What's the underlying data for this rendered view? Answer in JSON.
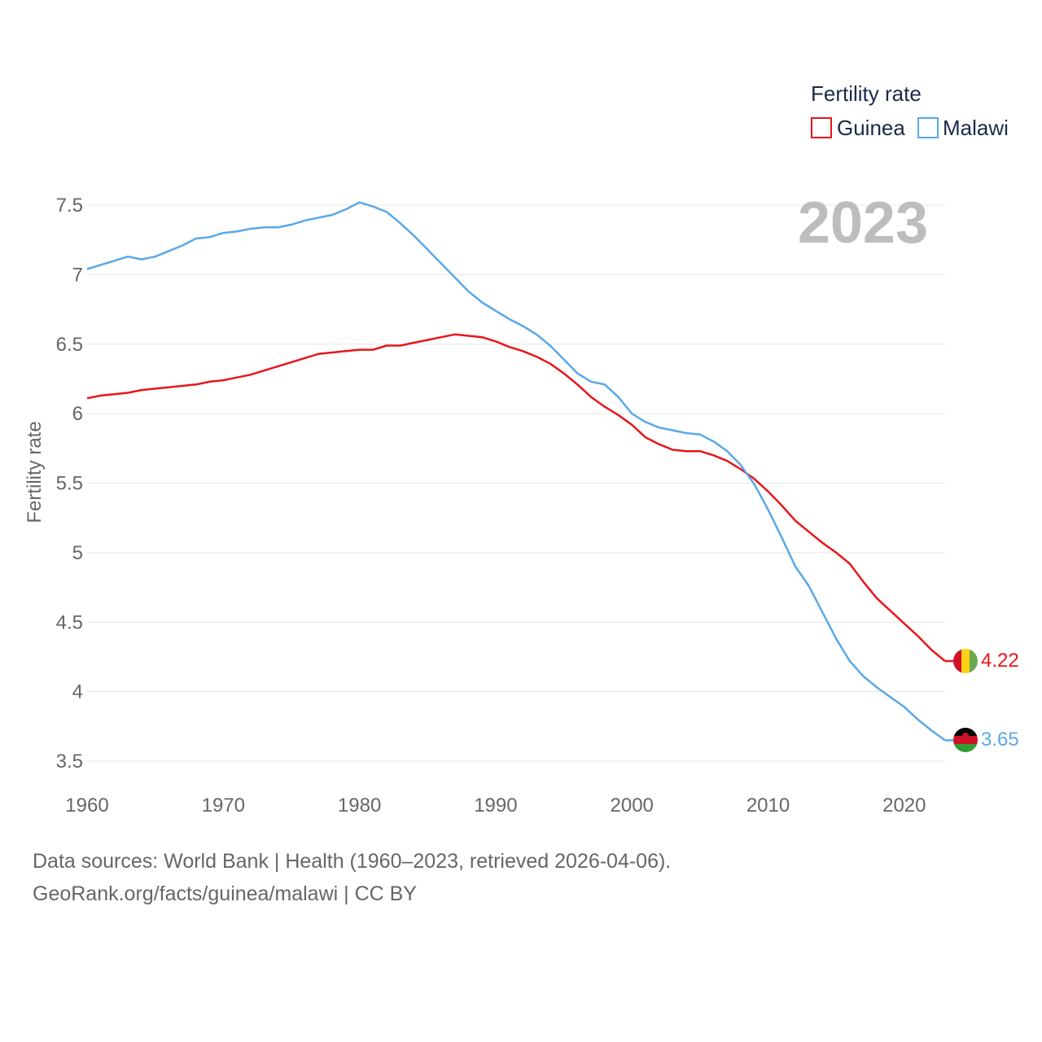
{
  "chart_data": {
    "type": "line",
    "title": "Fertility rate",
    "legend_title": "Fertility rate",
    "legend_position": "top-right",
    "ylabel": "Fertility rate",
    "xlabel": "",
    "year_label": "2023",
    "xlim": [
      1960,
      2023
    ],
    "ylim": [
      3.5,
      7.5
    ],
    "x_ticks": [
      "1960",
      "1970",
      "1980",
      "1990",
      "2000",
      "2010",
      "2020"
    ],
    "y_ticks": [
      "3.5",
      "4",
      "4.5",
      "5",
      "5.5",
      "6",
      "6.5",
      "7",
      "7.5"
    ],
    "grid": true,
    "x": [
      1960,
      1961,
      1962,
      1963,
      1964,
      1965,
      1966,
      1967,
      1968,
      1969,
      1970,
      1971,
      1972,
      1973,
      1974,
      1975,
      1976,
      1977,
      1978,
      1979,
      1980,
      1981,
      1982,
      1983,
      1984,
      1985,
      1986,
      1987,
      1988,
      1989,
      1990,
      1991,
      1992,
      1993,
      1994,
      1995,
      1996,
      1997,
      1998,
      1999,
      2000,
      2001,
      2002,
      2003,
      2004,
      2005,
      2006,
      2007,
      2008,
      2009,
      2010,
      2011,
      2012,
      2013,
      2014,
      2015,
      2016,
      2017,
      2018,
      2019,
      2020,
      2021,
      2022,
      2023
    ],
    "series": [
      {
        "name": "Guinea",
        "color": "#e8161b",
        "end_label": "4.22",
        "values": [
          6.11,
          6.13,
          6.14,
          6.15,
          6.17,
          6.18,
          6.19,
          6.2,
          6.21,
          6.23,
          6.24,
          6.26,
          6.28,
          6.31,
          6.34,
          6.37,
          6.4,
          6.43,
          6.44,
          6.45,
          6.46,
          6.46,
          6.49,
          6.49,
          6.51,
          6.53,
          6.55,
          6.57,
          6.56,
          6.55,
          6.52,
          6.48,
          6.45,
          6.41,
          6.36,
          6.29,
          6.21,
          6.12,
          6.05,
          5.99,
          5.92,
          5.83,
          5.78,
          5.74,
          5.73,
          5.73,
          5.7,
          5.66,
          5.6,
          5.53,
          5.44,
          5.34,
          5.23,
          5.15,
          5.07,
          5.0,
          4.92,
          4.79,
          4.67,
          4.58,
          4.49,
          4.4,
          4.3,
          4.22
        ]
      },
      {
        "name": "Malawi",
        "color": "#5aa8e8",
        "end_label": "3.65",
        "values": [
          7.04,
          7.07,
          7.1,
          7.13,
          7.11,
          7.13,
          7.17,
          7.21,
          7.26,
          7.27,
          7.3,
          7.31,
          7.33,
          7.34,
          7.34,
          7.36,
          7.39,
          7.41,
          7.43,
          7.47,
          7.52,
          7.49,
          7.45,
          7.37,
          7.28,
          7.18,
          7.08,
          6.98,
          6.88,
          6.8,
          6.74,
          6.68,
          6.63,
          6.57,
          6.49,
          6.39,
          6.29,
          6.23,
          6.21,
          6.12,
          6.0,
          5.94,
          5.9,
          5.88,
          5.86,
          5.85,
          5.8,
          5.73,
          5.63,
          5.49,
          5.31,
          5.11,
          4.9,
          4.76,
          4.57,
          4.38,
          4.22,
          4.11,
          4.03,
          3.96,
          3.89,
          3.8,
          3.72,
          3.65
        ]
      }
    ]
  },
  "footer": {
    "line1": "Data sources: World Bank | Health (1960–2023, retrieved 2026-04-06).",
    "line2": "GeoRank.org/facts/guinea/malawi | CC BY"
  }
}
